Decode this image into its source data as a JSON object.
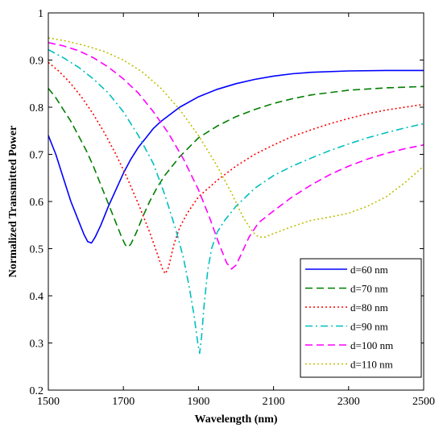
{
  "chart_data": {
    "type": "line",
    "title": "",
    "xlabel": "Wavelength (nm)",
    "ylabel": "Normalized Transmitted Power",
    "xlim": [
      1500,
      2500
    ],
    "ylim": [
      0.2,
      1.0
    ],
    "xticks": [
      1500,
      1700,
      1900,
      2100,
      2300,
      2500
    ],
    "yticks": [
      0.2,
      0.3,
      0.4,
      0.5,
      0.6,
      0.7,
      0.8,
      0.9,
      1.0
    ],
    "xtick_labels": [
      "1500",
      "1700",
      "1900",
      "2100",
      "2300",
      "2500"
    ],
    "ytick_labels": [
      "0.2",
      "0.3",
      "0.4",
      "0.5",
      "0.6",
      "0.7",
      "0.8",
      "0.9",
      "1"
    ],
    "grid": false,
    "legend_position": "bottom-right",
    "series": [
      {
        "name": "d=60 nm",
        "color": "#0000ff",
        "dash": "solid",
        "points": [
          [
            1500,
            0.74
          ],
          [
            1520,
            0.7
          ],
          [
            1540,
            0.65
          ],
          [
            1560,
            0.6
          ],
          [
            1580,
            0.56
          ],
          [
            1595,
            0.53
          ],
          [
            1605,
            0.515
          ],
          [
            1615,
            0.512
          ],
          [
            1625,
            0.525
          ],
          [
            1640,
            0.55
          ],
          [
            1660,
            0.59
          ],
          [
            1680,
            0.625
          ],
          [
            1700,
            0.66
          ],
          [
            1720,
            0.69
          ],
          [
            1740,
            0.715
          ],
          [
            1760,
            0.735
          ],
          [
            1780,
            0.755
          ],
          [
            1800,
            0.77
          ],
          [
            1850,
            0.8
          ],
          [
            1900,
            0.822
          ],
          [
            1950,
            0.838
          ],
          [
            2000,
            0.85
          ],
          [
            2050,
            0.859
          ],
          [
            2100,
            0.866
          ],
          [
            2150,
            0.871
          ],
          [
            2200,
            0.874
          ],
          [
            2300,
            0.877
          ],
          [
            2400,
            0.878
          ],
          [
            2500,
            0.878
          ]
        ]
      },
      {
        "name": "d=70 nm",
        "color": "#007f00",
        "dash": "dashed",
        "points": [
          [
            1500,
            0.84
          ],
          [
            1520,
            0.82
          ],
          [
            1540,
            0.795
          ],
          [
            1560,
            0.77
          ],
          [
            1580,
            0.74
          ],
          [
            1600,
            0.71
          ],
          [
            1620,
            0.675
          ],
          [
            1640,
            0.635
          ],
          [
            1660,
            0.595
          ],
          [
            1680,
            0.555
          ],
          [
            1695,
            0.525
          ],
          [
            1705,
            0.508
          ],
          [
            1712,
            0.503
          ],
          [
            1720,
            0.51
          ],
          [
            1735,
            0.535
          ],
          [
            1750,
            0.565
          ],
          [
            1770,
            0.6
          ],
          [
            1790,
            0.63
          ],
          [
            1810,
            0.655
          ],
          [
            1830,
            0.675
          ],
          [
            1850,
            0.695
          ],
          [
            1900,
            0.735
          ],
          [
            1950,
            0.76
          ],
          [
            2000,
            0.78
          ],
          [
            2050,
            0.795
          ],
          [
            2100,
            0.808
          ],
          [
            2150,
            0.818
          ],
          [
            2200,
            0.826
          ],
          [
            2300,
            0.836
          ],
          [
            2400,
            0.841
          ],
          [
            2500,
            0.844
          ]
        ]
      },
      {
        "name": "d=80 nm",
        "color": "#ff0000",
        "dash": "dotted",
        "points": [
          [
            1500,
            0.895
          ],
          [
            1530,
            0.875
          ],
          [
            1560,
            0.85
          ],
          [
            1590,
            0.82
          ],
          [
            1620,
            0.785
          ],
          [
            1650,
            0.745
          ],
          [
            1680,
            0.7
          ],
          [
            1710,
            0.65
          ],
          [
            1740,
            0.595
          ],
          [
            1770,
            0.535
          ],
          [
            1790,
            0.49
          ],
          [
            1805,
            0.455
          ],
          [
            1812,
            0.447
          ],
          [
            1820,
            0.46
          ],
          [
            1835,
            0.51
          ],
          [
            1850,
            0.545
          ],
          [
            1870,
            0.575
          ],
          [
            1900,
            0.61
          ],
          [
            1950,
            0.645
          ],
          [
            2000,
            0.675
          ],
          [
            2050,
            0.7
          ],
          [
            2100,
            0.72
          ],
          [
            2150,
            0.738
          ],
          [
            2200,
            0.752
          ],
          [
            2250,
            0.765
          ],
          [
            2300,
            0.776
          ],
          [
            2350,
            0.786
          ],
          [
            2400,
            0.794
          ],
          [
            2450,
            0.8
          ],
          [
            2500,
            0.806
          ]
        ]
      },
      {
        "name": "d=90 nm",
        "color": "#00bfbf",
        "dash": "dash-dot",
        "points": [
          [
            1500,
            0.922
          ],
          [
            1540,
            0.905
          ],
          [
            1580,
            0.885
          ],
          [
            1620,
            0.86
          ],
          [
            1660,
            0.83
          ],
          [
            1700,
            0.79
          ],
          [
            1740,
            0.74
          ],
          [
            1780,
            0.68
          ],
          [
            1810,
            0.615
          ],
          [
            1840,
            0.54
          ],
          [
            1860,
            0.48
          ],
          [
            1875,
            0.42
          ],
          [
            1888,
            0.36
          ],
          [
            1898,
            0.3
          ],
          [
            1903,
            0.278
          ],
          [
            1908,
            0.31
          ],
          [
            1915,
            0.38
          ],
          [
            1925,
            0.455
          ],
          [
            1935,
            0.5
          ],
          [
            1950,
            0.535
          ],
          [
            1970,
            0.56
          ],
          [
            2000,
            0.59
          ],
          [
            2050,
            0.628
          ],
          [
            2100,
            0.655
          ],
          [
            2150,
            0.675
          ],
          [
            2200,
            0.692
          ],
          [
            2250,
            0.708
          ],
          [
            2300,
            0.722
          ],
          [
            2350,
            0.735
          ],
          [
            2400,
            0.746
          ],
          [
            2450,
            0.756
          ],
          [
            2500,
            0.765
          ]
        ]
      },
      {
        "name": "d=100 nm",
        "color": "#ff00ff",
        "dash": "dashed",
        "points": [
          [
            1500,
            0.937
          ],
          [
            1540,
            0.93
          ],
          [
            1580,
            0.92
          ],
          [
            1620,
            0.905
          ],
          [
            1660,
            0.885
          ],
          [
            1700,
            0.86
          ],
          [
            1740,
            0.83
          ],
          [
            1780,
            0.79
          ],
          [
            1820,
            0.745
          ],
          [
            1860,
            0.69
          ],
          [
            1900,
            0.625
          ],
          [
            1930,
            0.565
          ],
          [
            1955,
            0.51
          ],
          [
            1975,
            0.47
          ],
          [
            1988,
            0.457
          ],
          [
            2000,
            0.465
          ],
          [
            2015,
            0.49
          ],
          [
            2035,
            0.525
          ],
          [
            2060,
            0.555
          ],
          [
            2100,
            0.58
          ],
          [
            2150,
            0.61
          ],
          [
            2200,
            0.635
          ],
          [
            2250,
            0.657
          ],
          [
            2300,
            0.675
          ],
          [
            2350,
            0.69
          ],
          [
            2400,
            0.702
          ],
          [
            2450,
            0.712
          ],
          [
            2500,
            0.72
          ]
        ]
      },
      {
        "name": "d=110 nm",
        "color": "#bfbf00",
        "dash": "dotted",
        "points": [
          [
            1500,
            0.947
          ],
          [
            1550,
            0.94
          ],
          [
            1600,
            0.93
          ],
          [
            1650,
            0.918
          ],
          [
            1700,
            0.9
          ],
          [
            1750,
            0.875
          ],
          [
            1800,
            0.84
          ],
          [
            1850,
            0.795
          ],
          [
            1900,
            0.74
          ],
          [
            1950,
            0.675
          ],
          [
            1990,
            0.615
          ],
          [
            2020,
            0.565
          ],
          [
            2045,
            0.535
          ],
          [
            2060,
            0.525
          ],
          [
            2075,
            0.524
          ],
          [
            2100,
            0.532
          ],
          [
            2150,
            0.547
          ],
          [
            2200,
            0.56
          ],
          [
            2250,
            0.567
          ],
          [
            2300,
            0.575
          ],
          [
            2350,
            0.59
          ],
          [
            2400,
            0.61
          ],
          [
            2450,
            0.64
          ],
          [
            2500,
            0.675
          ]
        ]
      }
    ]
  }
}
